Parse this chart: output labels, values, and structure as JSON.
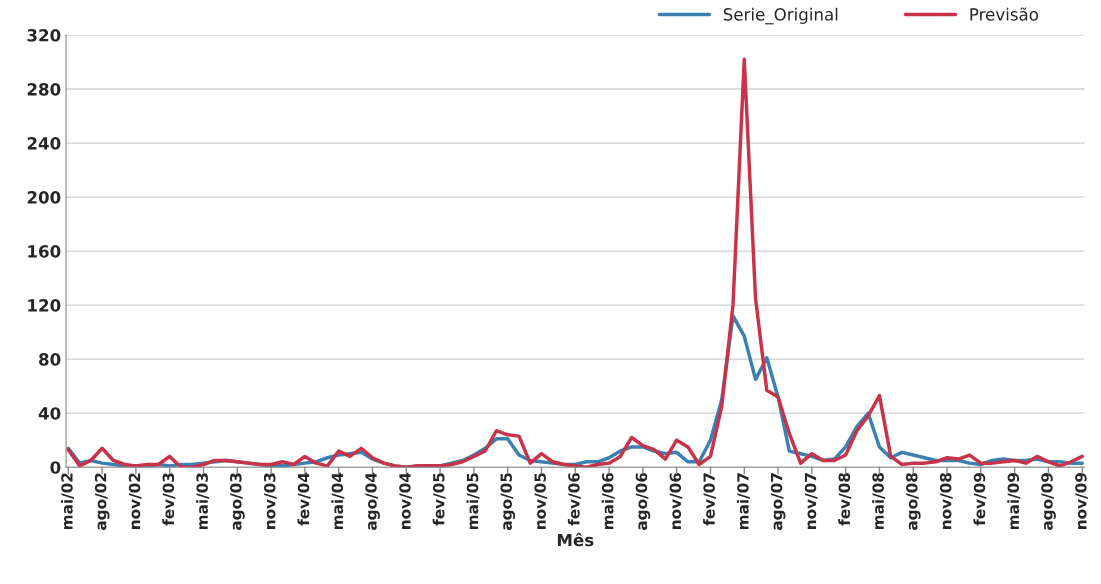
{
  "chart_data": {
    "type": "line",
    "xlabel": "Mês",
    "categories": [
      "mai/02",
      null,
      null,
      "ago/02",
      null,
      null,
      "nov/02",
      null,
      null,
      "fev/03",
      null,
      null,
      "mai/03",
      null,
      null,
      "ago/03",
      null,
      null,
      "nov/03",
      null,
      null,
      "fev/04",
      null,
      null,
      "mai/04",
      null,
      null,
      "ago/04",
      null,
      null,
      "nov/04",
      null,
      null,
      "fev/05",
      null,
      null,
      "mai/05",
      null,
      null,
      "ago/05",
      null,
      null,
      "nov/05",
      null,
      null,
      "fev/06",
      null,
      null,
      "mai/06",
      null,
      null,
      "ago/06",
      null,
      null,
      "nov/06",
      null,
      null,
      "fev/07",
      null,
      null,
      "mai/07",
      null,
      null,
      "ago/07",
      null,
      null,
      "nov/07",
      null,
      null,
      "fev/08",
      null,
      null,
      "mai/08",
      null,
      null,
      "ago/08",
      null,
      null,
      "nov/08",
      null,
      null,
      "fev/09",
      null,
      null,
      "mai/09",
      null,
      null,
      "ago/09",
      null,
      null,
      "nov/09"
    ],
    "series": [
      {
        "name": "Serie_Original",
        "color": "#3c7fb1",
        "values": [
          14,
          3,
          5,
          3,
          2,
          1,
          1,
          1,
          2,
          1,
          2,
          2,
          3,
          4,
          5,
          4,
          3,
          2,
          1,
          1,
          2,
          3,
          4,
          7,
          9,
          10,
          11,
          6,
          3,
          1,
          0,
          1,
          1,
          1,
          3,
          5,
          9,
          14,
          21,
          21,
          9,
          5,
          4,
          3,
          2,
          2,
          4,
          4,
          7,
          12,
          15,
          15,
          12,
          10,
          11,
          4,
          4,
          20,
          50,
          112,
          97,
          65,
          81,
          52,
          12,
          10,
          8,
          5,
          6,
          15,
          30,
          40,
          15,
          7,
          11,
          9,
          7,
          5,
          5,
          5,
          3,
          2,
          5,
          6,
          5,
          5,
          6,
          4,
          4,
          3,
          3
        ]
      },
      {
        "name": "Previsão",
        "color": "#c8334a",
        "values": [
          13,
          1,
          5,
          14,
          5,
          2,
          1,
          2,
          2,
          8,
          0,
          0,
          2,
          5,
          5,
          4,
          3,
          2,
          2,
          4,
          2,
          8,
          3,
          1,
          12,
          8,
          14,
          7,
          3,
          1,
          0,
          1,
          1,
          1,
          2,
          4,
          8,
          12,
          27,
          24,
          23,
          3,
          10,
          4,
          2,
          1,
          0,
          2,
          3,
          8,
          22,
          16,
          13,
          6,
          20,
          15,
          2,
          8,
          45,
          120,
          302,
          125,
          57,
          52,
          25,
          3,
          10,
          5,
          5,
          9,
          27,
          38,
          53,
          8,
          2,
          3,
          3,
          4,
          7,
          6,
          9,
          3,
          3,
          4,
          5,
          3,
          8,
          4,
          1,
          4,
          8
        ]
      }
    ],
    "ylim": [
      0,
      320
    ],
    "yticks": [
      0,
      40,
      80,
      120,
      160,
      200,
      240,
      280,
      320
    ],
    "grid": "y",
    "legend": "top right",
    "marker": "none",
    "line_style": "solid"
  }
}
